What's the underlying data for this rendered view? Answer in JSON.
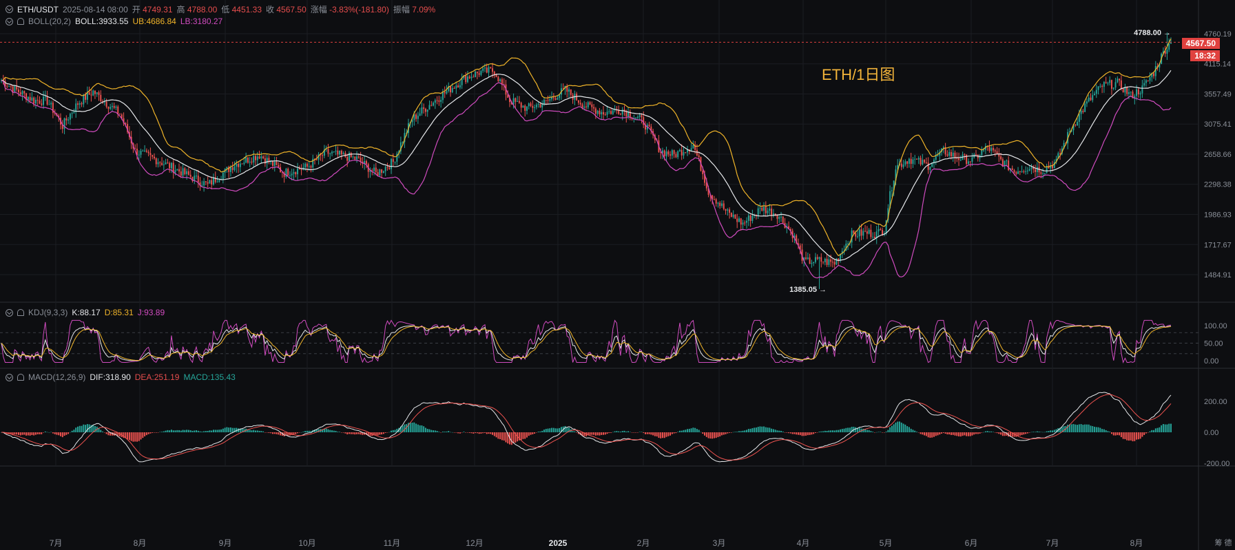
{
  "header": {
    "symbol": "ETH/USDT",
    "datetime": "2025-08-14 08:00",
    "open_label": "开",
    "open": "4749.31",
    "high_label": "高",
    "high": "4788.00",
    "low_label": "低",
    "low": "4451.33",
    "close_label": "收",
    "close": "4567.50",
    "change_label": "涨幅",
    "change": "-3.83%(-181.80)",
    "amp_label": "振幅",
    "amp": "7.09%"
  },
  "boll": {
    "name": "BOLL(20,2)",
    "mid": "BOLL:3933.55",
    "ub": "UB:4686.84",
    "lb": "LB:3180.27"
  },
  "kdj": {
    "name": "KDJ(9,3,3)",
    "k": "K:88.17",
    "d": "D:85.31",
    "j": "J:93.89"
  },
  "macd": {
    "name": "MACD(12,26,9)",
    "dif": "DIF:318.90",
    "dea": "DEA:251.19",
    "hist": "MACD:135.43"
  },
  "watermark": "ETH/1日图",
  "price_tag": "4567.50",
  "countdown_tag": "18:32",
  "max_label": "4788.00",
  "min_label": "1385.05",
  "corner_label": "筹 德",
  "colors": {
    "up": "#26a69a",
    "down": "#ef5350",
    "ub": "#f0b429",
    "lb": "#d14cc0",
    "mid": "#e6e8eb",
    "bg": "#0d0e11"
  },
  "chart_data": {
    "type": "candlestick",
    "price_axis": [
      "4760.19",
      "4115.14",
      "3557.49",
      "3075.41",
      "2658.66",
      "2298.38",
      "1986.93",
      "1717.67",
      "1484.91"
    ],
    "kdj_axis": [
      "100.00",
      "50.00",
      "0.00"
    ],
    "macd_axis": [
      "200.00",
      "0.00",
      "-200.00"
    ],
    "months": [
      "7月",
      "8月",
      "9月",
      "10月",
      "11月",
      "12月",
      "2025",
      "2月",
      "3月",
      "4月",
      "5月",
      "6月",
      "7月",
      "8月"
    ],
    "key_points": [
      {
        "t": 0,
        "c": 3800
      },
      {
        "t": 8,
        "c": 3620
      },
      {
        "t": 17,
        "c": 3450
      },
      {
        "t": 24,
        "c": 3440
      },
      {
        "t": 32,
        "c": 3050
      },
      {
        "t": 40,
        "c": 3400
      },
      {
        "t": 48,
        "c": 3600
      },
      {
        "t": 56,
        "c": 3380
      },
      {
        "t": 62,
        "c": 3230
      },
      {
        "t": 70,
        "c": 2700
      },
      {
        "t": 80,
        "c": 2600
      },
      {
        "t": 95,
        "c": 2430
      },
      {
        "t": 108,
        "c": 2290
      },
      {
        "t": 122,
        "c": 2530
      },
      {
        "t": 135,
        "c": 2650
      },
      {
        "t": 148,
        "c": 2430
      },
      {
        "t": 160,
        "c": 2500
      },
      {
        "t": 170,
        "c": 2680
      },
      {
        "t": 186,
        "c": 2600
      },
      {
        "t": 196,
        "c": 2420
      },
      {
        "t": 205,
        "c": 2560
      },
      {
        "t": 215,
        "c": 3150
      },
      {
        "t": 225,
        "c": 3400
      },
      {
        "t": 233,
        "c": 3600
      },
      {
        "t": 243,
        "c": 3850
      },
      {
        "t": 250,
        "c": 3950
      },
      {
        "t": 258,
        "c": 3980
      },
      {
        "t": 266,
        "c": 3450
      },
      {
        "t": 275,
        "c": 3320
      },
      {
        "t": 285,
        "c": 3420
      },
      {
        "t": 295,
        "c": 3630
      },
      {
        "t": 305,
        "c": 3370
      },
      {
        "t": 315,
        "c": 3250
      },
      {
        "t": 325,
        "c": 3300
      },
      {
        "t": 336,
        "c": 3110
      },
      {
        "t": 345,
        "c": 2700
      },
      {
        "t": 352,
        "c": 2650
      },
      {
        "t": 362,
        "c": 2780
      },
      {
        "t": 370,
        "c": 2220
      },
      {
        "t": 380,
        "c": 2000
      },
      {
        "t": 388,
        "c": 1900
      },
      {
        "t": 398,
        "c": 2050
      },
      {
        "t": 406,
        "c": 1990
      },
      {
        "t": 414,
        "c": 1810
      },
      {
        "t": 420,
        "c": 1580
      },
      {
        "t": 428,
        "c": 1590
      },
      {
        "t": 436,
        "c": 1570
      },
      {
        "t": 445,
        "c": 1800
      },
      {
        "t": 452,
        "c": 1820
      },
      {
        "t": 458,
        "c": 1810
      },
      {
        "t": 462,
        "c": 1850
      },
      {
        "t": 468,
        "c": 2500
      },
      {
        "t": 475,
        "c": 2600
      },
      {
        "t": 485,
        "c": 2520
      },
      {
        "t": 493,
        "c": 2700
      },
      {
        "t": 500,
        "c": 2620
      },
      {
        "t": 508,
        "c": 2580
      },
      {
        "t": 516,
        "c": 2750
      },
      {
        "t": 524,
        "c": 2560
      },
      {
        "t": 530,
        "c": 2450
      },
      {
        "t": 538,
        "c": 2500
      },
      {
        "t": 545,
        "c": 2460
      },
      {
        "t": 552,
        "c": 2560
      },
      {
        "t": 560,
        "c": 3020
      },
      {
        "t": 568,
        "c": 3400
      },
      {
        "t": 576,
        "c": 3700
      },
      {
        "t": 584,
        "c": 3750
      },
      {
        "t": 591,
        "c": 3530
      },
      {
        "t": 597,
        "c": 3650
      },
      {
        "t": 603,
        "c": 3950
      },
      {
        "t": 609,
        "c": 4420
      },
      {
        "t": 612,
        "c": 4560
      }
    ],
    "total_bars": 613
  }
}
